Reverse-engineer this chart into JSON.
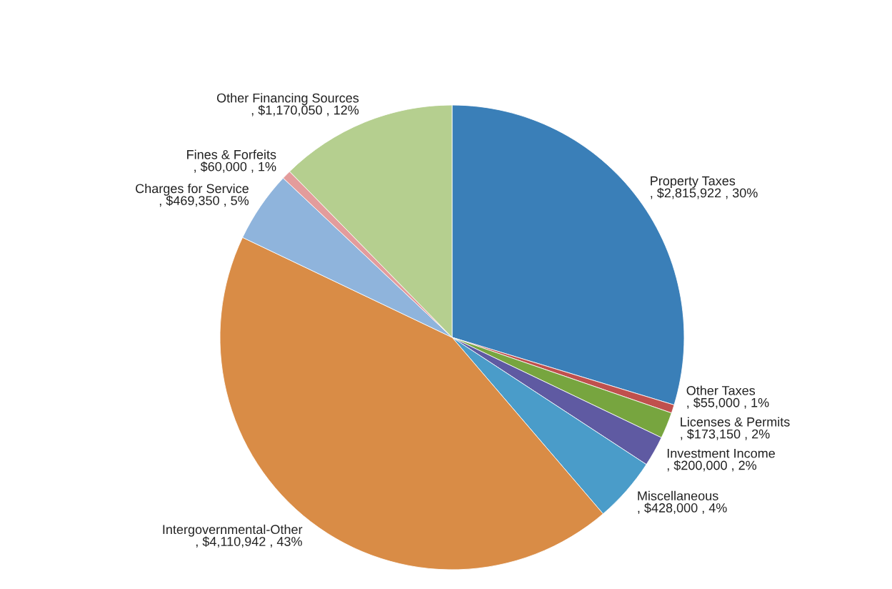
{
  "chart_data": {
    "type": "pie",
    "categories": [
      "Property Taxes",
      "Other Taxes",
      "Licenses & Permits",
      "Investment Income",
      "Miscellaneous",
      "Intergovernmental-Other",
      "Charges for Service",
      "Fines & Forfeits",
      "Other Financing Sources"
    ],
    "values": [
      2815922,
      55000,
      173150,
      200000,
      428000,
      4110942,
      469350,
      60000,
      1170050
    ],
    "colors": [
      "#3a7fb8",
      "#c0504d",
      "#77a53f",
      "#5f5aa2",
      "#4a9cc9",
      "#d98c46",
      "#8fb4dc",
      "#e39c9c",
      "#b5cf8f"
    ],
    "value_labels": [
      ", $2,815,922 , 30%",
      ", $55,000 , 1%",
      ", $173,150 , 2%",
      ", $200,000 , 2%",
      ", $428,000 , 4%",
      ", $4,110,942 , 43%",
      ", $469,350 , 5%",
      ", $60,000 , 1%",
      ", $1,170,050 , 12%"
    ],
    "legend": false
  }
}
